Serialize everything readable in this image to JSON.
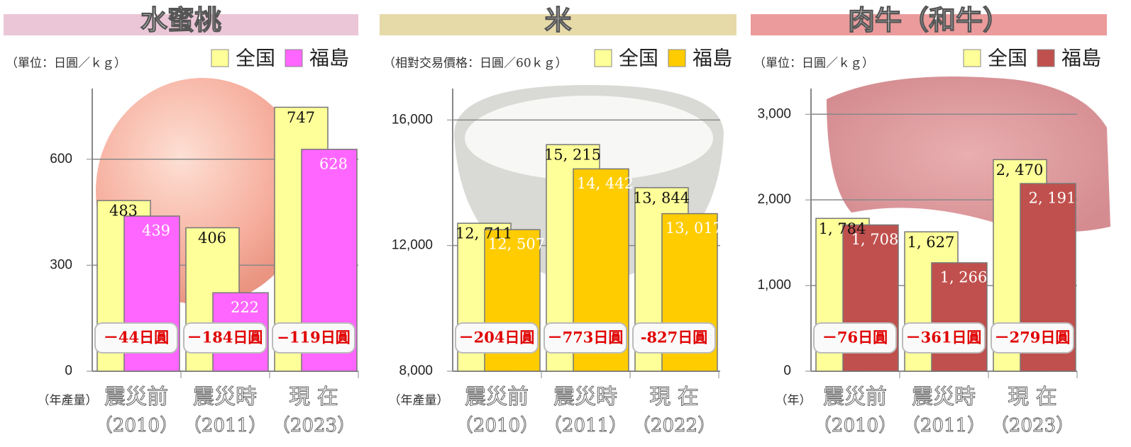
{
  "chart_data": [
    {
      "type": "bar",
      "title": "水蜜桃",
      "unit_label": "（單位：日圓／ｋｇ）",
      "x_label": "（年產量）",
      "categories": [
        "震災前",
        "震災時",
        "現 在"
      ],
      "category_years": [
        "（2010）",
        "（2011）",
        "（2023）"
      ],
      "series": [
        {
          "name": "全国",
          "color": "#ffff99",
          "values": [
            483,
            406,
            747
          ]
        },
        {
          "name": "福島",
          "color": "#ff66ff",
          "values": [
            439,
            222,
            628
          ]
        }
      ],
      "annotations": [
        "－44日圓",
        "－184日圓",
        "−119日圓"
      ],
      "ylim": [
        0,
        800
      ],
      "yticks": [
        0,
        300,
        600
      ],
      "grid": true,
      "title_color": "#e8bcd0"
    },
    {
      "type": "bar",
      "title": "米",
      "unit_label": "（相對交易價格：日圓／60ｋｇ）",
      "x_label": "（年產量）",
      "categories": [
        "震災前",
        "震災時",
        "現 在"
      ],
      "category_years": [
        "（2010）",
        "（2011）",
        "（2022）"
      ],
      "series": [
        {
          "name": "全国",
          "color": "#ffff99",
          "values": [
            12711,
            15215,
            13844
          ],
          "value_labels": [
            "12, 711",
            "15, 215",
            "13, 844"
          ]
        },
        {
          "name": "福島",
          "color": "#ffcc00",
          "values": [
            12507,
            14442,
            13017
          ],
          "value_labels": [
            "12, 507",
            "14, 442",
            "13, 017"
          ]
        }
      ],
      "annotations": [
        "－204日圓",
        "－773日圓",
        "-827日圓"
      ],
      "ylim": [
        8000,
        17000
      ],
      "yticks": [
        {
          "value": 8000,
          "label": "8,000"
        },
        {
          "value": 12000,
          "label": "12,000"
        },
        {
          "value": 16000,
          "label": "16,000"
        }
      ],
      "grid": true,
      "title_color": "#e2d49a"
    },
    {
      "type": "bar",
      "title": "肉牛（和牛）",
      "unit_label": "（單位：日圓／ｋｇ）",
      "x_label": "（年）",
      "categories": [
        "震災前",
        "震災時",
        "現 在"
      ],
      "category_years": [
        "（2010）",
        "（2011）",
        "（2023）"
      ],
      "series": [
        {
          "name": "全国",
          "color": "#ffff99",
          "values": [
            1784,
            1627,
            2470
          ],
          "value_labels": [
            "1, 784",
            "1, 627",
            "2, 470"
          ]
        },
        {
          "name": "福島",
          "color": "#c0504d",
          "values": [
            1708,
            1266,
            2191
          ],
          "value_labels": [
            "1, 708",
            "1, 266",
            "2, 191"
          ]
        }
      ],
      "annotations": [
        "－76日圓",
        "－361日圓",
        "－279日圓"
      ],
      "ylim": [
        0,
        3300
      ],
      "yticks": [
        0,
        {
          "value": 1000,
          "label": "1,000"
        },
        {
          "value": 2000,
          "label": "2,000"
        },
        {
          "value": 3000,
          "label": "3,000"
        }
      ],
      "grid": true,
      "title_color": "#e88a8a"
    }
  ]
}
